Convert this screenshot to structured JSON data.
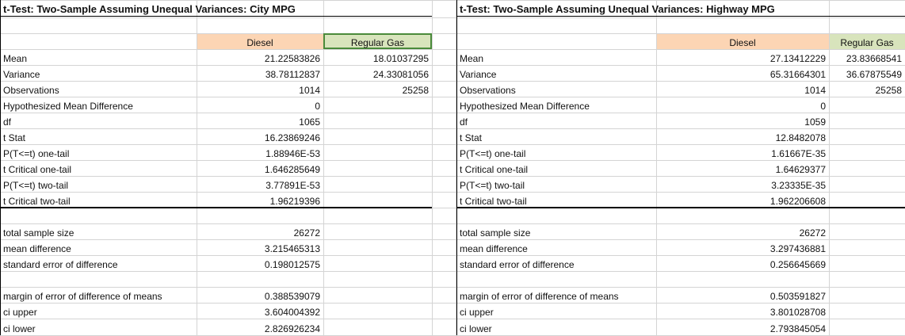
{
  "colors": {
    "diesel_header": "#fcd5b4",
    "regular_header": "#d8e4bc",
    "gridline": "#d4d4d4",
    "border": "#000000"
  },
  "tables": [
    {
      "title": "t-Test: Two-Sample Assuming Unequal Variances: City MPG",
      "headers": [
        "Diesel",
        "Regular Gas"
      ],
      "stats": [
        {
          "label": "Mean",
          "diesel": "21.22583826",
          "regular": "18.01037295"
        },
        {
          "label": "Variance",
          "diesel": "38.78112837",
          "regular": "24.33081056"
        },
        {
          "label": "Observations",
          "diesel": "1014",
          "regular": "25258"
        },
        {
          "label": "Hypothesized Mean Difference",
          "diesel": "0",
          "regular": ""
        },
        {
          "label": "df",
          "diesel": "1065",
          "regular": ""
        },
        {
          "label": "t Stat",
          "diesel": "16.23869246",
          "regular": ""
        },
        {
          "label": "P(T<=t) one-tail",
          "diesel": "1.88946E-53",
          "regular": ""
        },
        {
          "label": "t Critical one-tail",
          "diesel": "1.646285649",
          "regular": ""
        },
        {
          "label": "P(T<=t) two-tail",
          "diesel": "3.77891E-53",
          "regular": ""
        },
        {
          "label": "t Critical two-tail",
          "diesel": "1.96219396",
          "regular": ""
        }
      ],
      "summary": [
        {
          "label": "total sample size",
          "value": "26272"
        },
        {
          "label": "mean difference",
          "value": "3.215465313"
        },
        {
          "label": "standard error of difference",
          "value": "0.198012575"
        }
      ],
      "ci": [
        {
          "label": "margin of error of difference of means",
          "value": "0.388539079"
        },
        {
          "label": "ci upper",
          "value": "3.604004392"
        },
        {
          "label": "ci lower",
          "value": "2.826926234"
        }
      ]
    },
    {
      "title": "t-Test: Two-Sample Assuming Unequal Variances: Highway MPG",
      "headers": [
        "Diesel",
        "Regular Gas"
      ],
      "stats": [
        {
          "label": "Mean",
          "diesel": "27.13412229",
          "regular": "23.83668541"
        },
        {
          "label": "Variance",
          "diesel": "65.31664301",
          "regular": "36.67875549"
        },
        {
          "label": "Observations",
          "diesel": "1014",
          "regular": "25258"
        },
        {
          "label": "Hypothesized Mean Difference",
          "diesel": "0",
          "regular": ""
        },
        {
          "label": "df",
          "diesel": "1059",
          "regular": ""
        },
        {
          "label": "t Stat",
          "diesel": "12.8482078",
          "regular": ""
        },
        {
          "label": "P(T<=t) one-tail",
          "diesel": "1.61667E-35",
          "regular": ""
        },
        {
          "label": "t Critical one-tail",
          "diesel": "1.64629377",
          "regular": ""
        },
        {
          "label": "P(T<=t) two-tail",
          "diesel": "3.23335E-35",
          "regular": ""
        },
        {
          "label": "t Critical two-tail",
          "diesel": "1.962206608",
          "regular": ""
        }
      ],
      "summary": [
        {
          "label": "total sample size",
          "value": "26272"
        },
        {
          "label": "mean difference",
          "value": "3.297436881"
        },
        {
          "label": "standard error of difference",
          "value": "0.256645669"
        }
      ],
      "ci": [
        {
          "label": "margin of error of difference of means",
          "value": "0.503591827"
        },
        {
          "label": "ci upper",
          "value": "3.801028708"
        },
        {
          "label": "ci lower",
          "value": "2.793845054"
        }
      ]
    }
  ]
}
